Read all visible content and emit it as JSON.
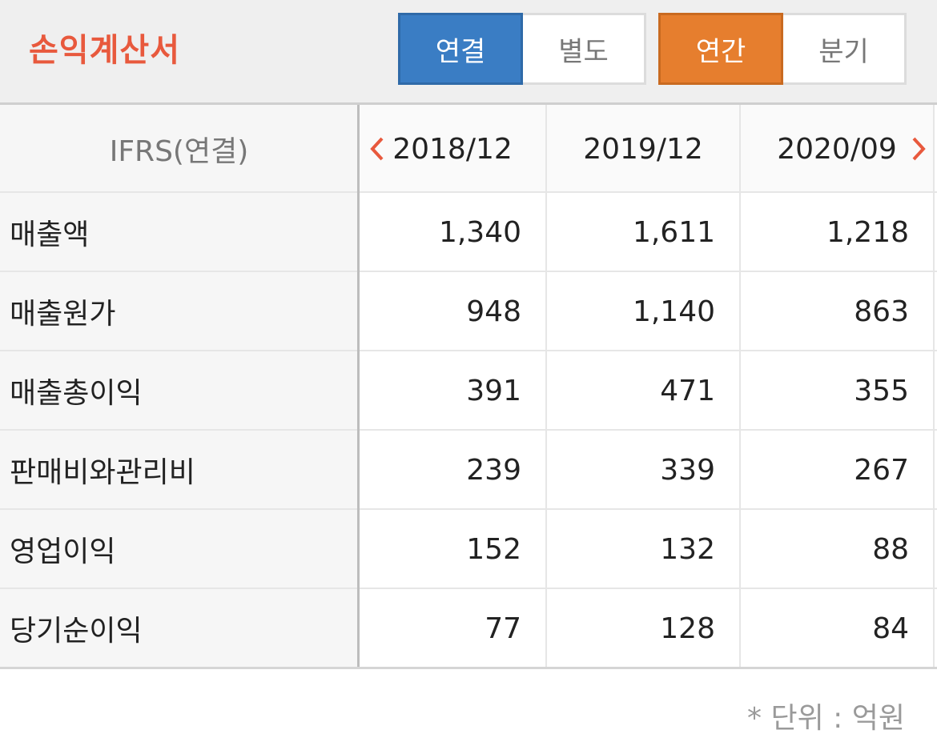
{
  "header": {
    "title": "손익계산서",
    "basis_toggle": {
      "selected": "연결",
      "options": [
        "연결",
        "별도"
      ]
    },
    "period_toggle": {
      "selected": "연간",
      "options": [
        "연간",
        "분기"
      ]
    }
  },
  "table": {
    "corner_label": "IFRS(연결)",
    "columns": [
      "2018/12",
      "2019/12",
      "2020/09"
    ],
    "rows": [
      {
        "label": "매출액",
        "values": [
          "1,340",
          "1,611",
          "1,218"
        ]
      },
      {
        "label": "매출원가",
        "values": [
          "948",
          "1,140",
          "863"
        ]
      },
      {
        "label": "매출총이익",
        "values": [
          "391",
          "471",
          "355"
        ]
      },
      {
        "label": "판매비와관리비",
        "values": [
          "239",
          "339",
          "267"
        ]
      },
      {
        "label": "영업이익",
        "values": [
          "152",
          "132",
          "88"
        ]
      },
      {
        "label": "당기순이익",
        "values": [
          "77",
          "128",
          "84"
        ]
      }
    ]
  },
  "nav": {
    "prev_icon": "chevron-left-icon",
    "next_icon": "chevron-right-icon"
  },
  "footer": {
    "unit_note": "* 단위 : 억원"
  },
  "colors": {
    "accent_red": "#e8593d",
    "toggle_blue": "#3a7dc4",
    "toggle_orange": "#e67e2e"
  }
}
